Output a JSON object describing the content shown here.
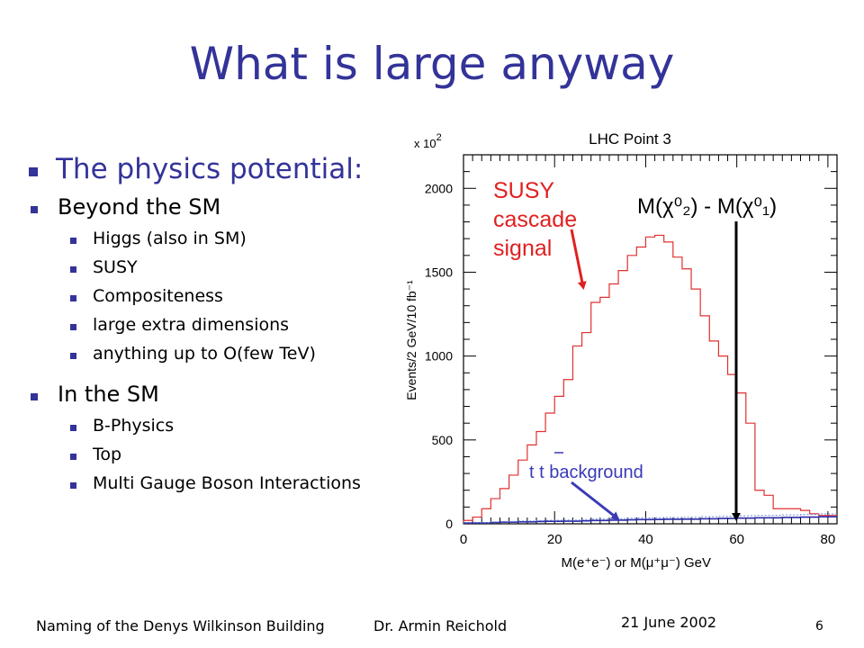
{
  "slide": {
    "title": "What is large anyway",
    "bullets": [
      {
        "level": 1,
        "text": "The physics potential:"
      },
      {
        "level": 2,
        "text": "Beyond the SM"
      },
      {
        "level": 3,
        "text": "Higgs (also in SM)"
      },
      {
        "level": 3,
        "text": "SUSY"
      },
      {
        "level": 3,
        "text": "Compositeness"
      },
      {
        "level": 3,
        "text": "large extra dimensions"
      },
      {
        "level": 3,
        "text": "anything up to O(few TeV)"
      },
      {
        "level": 2,
        "text": "In the SM"
      },
      {
        "level": 3,
        "text": "B-Physics"
      },
      {
        "level": 3,
        "text": "Top"
      },
      {
        "level": 3,
        "text": "Multi Gauge Boson Interactions"
      }
    ],
    "footer": {
      "left": "Naming of the Denys Wilkinson Building",
      "author": "Dr. Armin Reichold",
      "date": "21 June 2002",
      "page": "6"
    }
  },
  "colors": {
    "title": "#333399",
    "bullet": "#333399",
    "signal": "#e03030",
    "background_hist": "#2a2aa8",
    "annotation_red": "#e02020",
    "annotation_blue": "#3a3ab8"
  },
  "chart_data": {
    "type": "histogram",
    "title": "LHC Point 3",
    "xlabel": "M(e⁺e⁻) or  M(μ⁺μ⁻) GeV",
    "ylabel": "Events/2 GeV/10 fb⁻¹",
    "y_multiplier": "x 10",
    "y_multiplier_exp": "2",
    "xlim": [
      0,
      82
    ],
    "ylim": [
      0,
      2200
    ],
    "xticks": [
      0,
      20,
      40,
      60,
      80
    ],
    "yticks": [
      0,
      500,
      1000,
      1500,
      2000
    ],
    "bin_width": 2,
    "series": [
      {
        "x": [
          0,
          2,
          4,
          6,
          8,
          10,
          12,
          14,
          16,
          18,
          20,
          22,
          24,
          26,
          28,
          30,
          32,
          34,
          36,
          38,
          40,
          42,
          44,
          46,
          48,
          50,
          52,
          54,
          56,
          58,
          60,
          62,
          64,
          66,
          68,
          70,
          72,
          74,
          76,
          78,
          80
        ],
        "values": [
          20,
          40,
          90,
          150,
          210,
          290,
          380,
          470,
          550,
          660,
          760,
          860,
          1060,
          1140,
          1320,
          1350,
          1430,
          1510,
          1600,
          1650,
          1710,
          1720,
          1680,
          1590,
          1520,
          1400,
          1240,
          1090,
          1000,
          890,
          780,
          600,
          200,
          170,
          90,
          90,
          90,
          80,
          60,
          50,
          50
        ]
      },
      {
        "x": [
          0,
          2,
          4,
          6,
          8,
          10,
          12,
          14,
          16,
          18,
          20,
          22,
          24,
          26,
          28,
          30,
          32,
          34,
          36,
          38,
          40,
          42,
          44,
          46,
          48,
          50,
          52,
          54,
          56,
          58,
          60,
          62,
          64,
          66,
          68,
          70,
          72,
          74,
          76,
          78,
          80
        ],
        "values": [
          5,
          5,
          5,
          8,
          10,
          10,
          12,
          12,
          14,
          15,
          15,
          16,
          16,
          18,
          20,
          20,
          22,
          22,
          24,
          25,
          25,
          26,
          27,
          27,
          28,
          28,
          30,
          30,
          32,
          32,
          34,
          34,
          36,
          36,
          36,
          38,
          38,
          40,
          40,
          42,
          42
        ]
      }
    ],
    "annotations": [
      {
        "text_lines": [
          "SUSY",
          "cascade",
          "signal"
        ],
        "x": 28,
        "y": 1500
      },
      {
        "text": "t t background",
        "x": 32,
        "y": 20
      },
      {
        "text": "M(χ⁰₂) - M(χ⁰₁)",
        "x": 62,
        "y": 0
      }
    ]
  }
}
